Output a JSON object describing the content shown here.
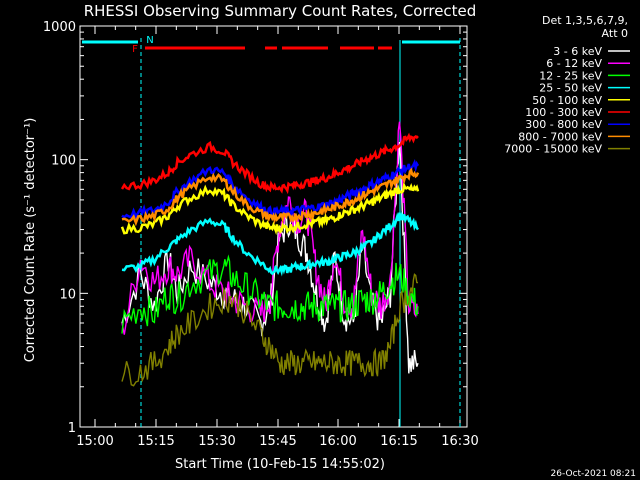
{
  "chart_data": {
    "type": "line",
    "title": "RHESSI Observing Summary Count Rates, Corrected",
    "xlabel": "Start Time (10-Feb-15 14:55:02)",
    "ylabel": "Corrected Count Rate (s⁻¹ detector⁻¹)",
    "yscale": "log",
    "ylim": [
      1,
      1000
    ],
    "xlim_minutes": [
      14.92,
      35.5
    ],
    "x_ticks": [
      "15:00",
      "15:15",
      "15:30",
      "15:45",
      "16:00",
      "16:15",
      "16:30"
    ],
    "y_ticks": [
      "1",
      "10",
      "100",
      "1000"
    ],
    "legend": {
      "header": [
        "Det 1,3,5,6,7,9,",
        "Att 0"
      ],
      "placement": "right"
    },
    "timestamp": "26-Oct-2021 08:21",
    "series": [
      {
        "name": "3 - 6 keV",
        "color": "#ffffff",
        "x": [
          18,
          22,
          25,
          28,
          30,
          33,
          37,
          40,
          42,
          45,
          48,
          50,
          52,
          54,
          56,
          58,
          60,
          62,
          64,
          66,
          68,
          70,
          72,
          74,
          76,
          78,
          80,
          82
        ],
        "y": [
          6,
          14,
          8,
          18,
          10,
          16,
          12,
          10,
          9,
          8,
          6,
          8,
          25,
          35,
          28,
          20,
          10,
          6,
          18,
          7,
          6,
          22,
          8,
          6,
          10,
          160,
          3,
          3
        ]
      },
      {
        "name": "6 - 12 keV",
        "color": "#ff00ff",
        "x": [
          18,
          22,
          25,
          28,
          30,
          33,
          37,
          40,
          42,
          45,
          48,
          50,
          52,
          54,
          56,
          58,
          60,
          62,
          64,
          66,
          68,
          70,
          72,
          74,
          76,
          78,
          80,
          82
        ],
        "y": [
          5,
          18,
          12,
          16,
          14,
          18,
          12,
          10,
          9,
          8,
          7,
          9,
          30,
          50,
          35,
          40,
          15,
          8,
          20,
          9,
          8,
          30,
          10,
          8,
          12,
          200,
          8,
          7
        ]
      },
      {
        "name": "12 - 25 keV",
        "color": "#00ff00",
        "x": [
          18,
          22,
          25,
          28,
          30,
          33,
          37,
          40,
          42,
          45,
          48,
          50,
          52,
          54,
          56,
          58,
          60,
          62,
          64,
          66,
          68,
          70,
          72,
          74,
          76,
          78,
          80,
          82
        ],
        "y": [
          6,
          8,
          7,
          10,
          9,
          12,
          14,
          16,
          13,
          11,
          9,
          8,
          8,
          8,
          8,
          8,
          8,
          8,
          8,
          8,
          8,
          9,
          9,
          10,
          12,
          14,
          10,
          8
        ]
      },
      {
        "name": "25 - 50 keV",
        "color": "#00ffff",
        "x": [
          18,
          22,
          25,
          28,
          30,
          33,
          37,
          40,
          42,
          45,
          48,
          50,
          52,
          54,
          56,
          58,
          60,
          62,
          64,
          66,
          68,
          70,
          72,
          74,
          76,
          78,
          80,
          82
        ],
        "y": [
          15,
          16,
          18,
          22,
          25,
          30,
          35,
          32,
          26,
          20,
          17,
          15,
          15,
          15,
          16,
          16,
          17,
          17,
          18,
          19,
          20,
          22,
          24,
          28,
          32,
          38,
          35,
          30
        ]
      },
      {
        "name": "50 - 100 keV",
        "color": "#ffff00",
        "x": [
          18,
          22,
          25,
          28,
          30,
          33,
          37,
          40,
          42,
          45,
          48,
          50,
          52,
          54,
          56,
          58,
          60,
          62,
          64,
          66,
          68,
          70,
          72,
          74,
          76,
          78,
          80,
          82
        ],
        "y": [
          30,
          31,
          33,
          38,
          45,
          52,
          60,
          55,
          46,
          38,
          33,
          31,
          31,
          31,
          32,
          33,
          34,
          35,
          37,
          40,
          42,
          45,
          48,
          52,
          56,
          60,
          60,
          58
        ]
      },
      {
        "name": "100 - 300 keV",
        "color": "#ff0000",
        "x": [
          18,
          22,
          25,
          28,
          30,
          33,
          37,
          40,
          42,
          45,
          48,
          50,
          52,
          54,
          56,
          58,
          60,
          62,
          64,
          66,
          68,
          70,
          72,
          74,
          76,
          78,
          80,
          82
        ],
        "y": [
          63,
          65,
          70,
          80,
          95,
          110,
          125,
          115,
          95,
          78,
          66,
          62,
          62,
          63,
          65,
          67,
          70,
          73,
          78,
          84,
          90,
          98,
          105,
          112,
          120,
          130,
          145,
          150
        ]
      },
      {
        "name": "300 - 800 keV",
        "color": "#0000ff",
        "x": [
          18,
          22,
          25,
          28,
          30,
          33,
          37,
          40,
          42,
          45,
          48,
          50,
          52,
          54,
          56,
          58,
          60,
          62,
          64,
          66,
          68,
          70,
          72,
          74,
          76,
          78,
          80,
          82
        ],
        "y": [
          38,
          40,
          42,
          48,
          58,
          70,
          85,
          80,
          65,
          52,
          44,
          41,
          41,
          41,
          42,
          43,
          44,
          46,
          48,
          52,
          56,
          60,
          65,
          70,
          76,
          82,
          88,
          90
        ]
      },
      {
        "name": "800 - 7000 keV",
        "color": "#ff8c00",
        "x": [
          18,
          22,
          25,
          28,
          30,
          33,
          37,
          40,
          42,
          45,
          48,
          50,
          52,
          54,
          56,
          58,
          60,
          62,
          64,
          66,
          68,
          70,
          72,
          74,
          76,
          78,
          80,
          82
        ],
        "y": [
          34,
          36,
          38,
          43,
          52,
          62,
          75,
          70,
          58,
          46,
          40,
          37,
          37,
          37,
          38,
          39,
          40,
          42,
          44,
          47,
          50,
          54,
          58,
          62,
          67,
          72,
          78,
          80
        ]
      },
      {
        "name": "7000 - 15000 keV",
        "color": "#808000",
        "x": [
          18,
          22,
          25,
          28,
          30,
          33,
          37,
          40,
          42,
          45,
          48,
          50,
          52,
          54,
          56,
          58,
          60,
          62,
          64,
          66,
          68,
          70,
          72,
          74,
          76,
          78,
          80,
          82
        ],
        "y": [
          2.5,
          2.6,
          3,
          4,
          5,
          6,
          8,
          9,
          9,
          7,
          5,
          4,
          3,
          3,
          3,
          3,
          3,
          3,
          3,
          3,
          3,
          3,
          3,
          3,
          4,
          8,
          10,
          12
        ]
      }
    ],
    "flags": {
      "night_lines_cyan": [
        {
          "label": "N",
          "x_start": 16.6,
          "x_end": 18.5
        }
      ],
      "flare_marker": {
        "label": "F"
      }
    }
  }
}
